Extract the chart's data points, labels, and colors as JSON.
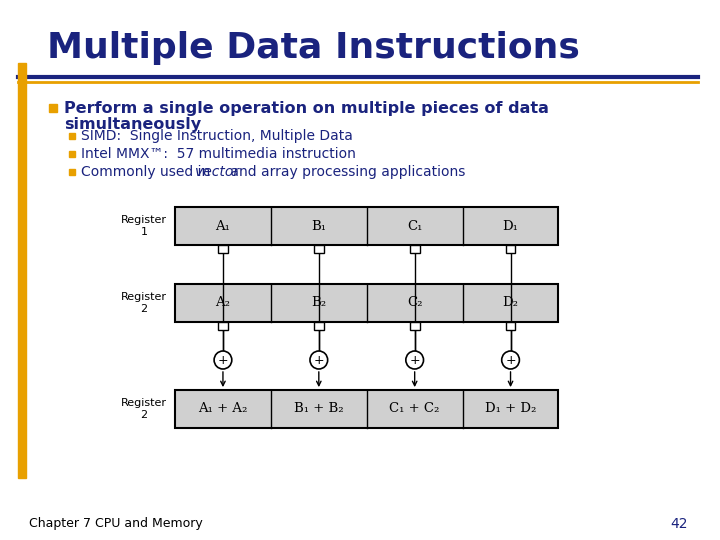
{
  "title": "Multiple Data Instructions",
  "title_color": "#1a237e",
  "accent_bar_color": "#E8A000",
  "header_line_color": "#1a237e",
  "header_line2_color": "#E8A000",
  "bullet_color": "#E8A000",
  "text_color": "#1a237e",
  "bg_color": "#ffffff",
  "footer_text": "Chapter 7 CPU and Memory",
  "footer_page": "42",
  "bullet1_line1": "Perform a single operation on multiple pieces of data",
  "bullet1_line2": "simultaneously",
  "sub1": "SIMD:  Single Instruction, Multiple Data",
  "sub2": "Intel MMX™:  57 multimedia instruction",
  "sub3_pre": "Commonly used in ",
  "sub3_italic": "vector",
  "sub3_post": " and array processing applications",
  "reg1_label": "Register\n1",
  "reg2_label": "Register\n2",
  "reg3_label": "Register\n2",
  "reg1_cells": [
    "A₁",
    "B₁",
    "C₁",
    "D₁"
  ],
  "reg2_cells": [
    "A₂",
    "B₂",
    "C₂",
    "D₂"
  ],
  "reg3_cells": [
    "A₁ + A₂",
    "B₁ + B₂",
    "C₁ + C₂",
    "D₁ + D₂"
  ],
  "reg_fill": "#d0d0d0",
  "reg_edge": "#000000"
}
